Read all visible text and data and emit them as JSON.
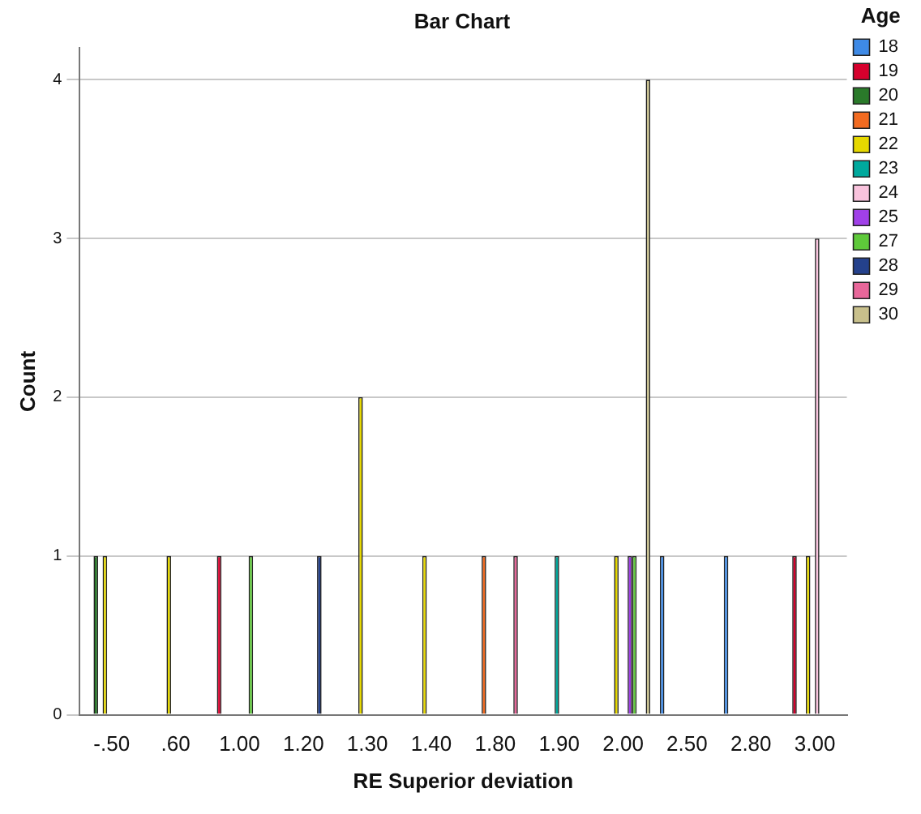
{
  "chart_data": {
    "type": "bar",
    "title": "Bar Chart",
    "xlabel": "RE Superior deviation",
    "ylabel": "Count",
    "legend_title": "Age",
    "categories": [
      "-.50",
      ".60",
      "1.00",
      "1.20",
      "1.30",
      "1.40",
      "1.80",
      "1.90",
      "2.00",
      "2.50",
      "2.80",
      "3.00"
    ],
    "series": [
      {
        "name": "18",
        "color": "#3e8ae6",
        "values": [
          0,
          0,
          0,
          0,
          0,
          0,
          0,
          0,
          0,
          1,
          1,
          0
        ]
      },
      {
        "name": "19",
        "color": "#d6002d",
        "values": [
          0,
          0,
          1,
          0,
          0,
          0,
          0,
          0,
          0,
          0,
          0,
          1
        ]
      },
      {
        "name": "20",
        "color": "#2a7a2a",
        "values": [
          1,
          0,
          0,
          0,
          0,
          0,
          0,
          0,
          0,
          0,
          0,
          0
        ]
      },
      {
        "name": "21",
        "color": "#f26b21",
        "values": [
          0,
          0,
          0,
          0,
          0,
          0,
          1,
          0,
          0,
          0,
          0,
          0
        ]
      },
      {
        "name": "22",
        "color": "#e6d800",
        "values": [
          1,
          1,
          0,
          0,
          2,
          1,
          0,
          0,
          1,
          0,
          0,
          1
        ]
      },
      {
        "name": "23",
        "color": "#00a99d",
        "values": [
          0,
          0,
          0,
          0,
          0,
          0,
          0,
          1,
          0,
          0,
          0,
          0
        ]
      },
      {
        "name": "24",
        "color": "#f9c3dd",
        "values": [
          0,
          0,
          0,
          0,
          0,
          0,
          0,
          0,
          0,
          0,
          0,
          3
        ]
      },
      {
        "name": "25",
        "color": "#a040e8",
        "values": [
          0,
          0,
          0,
          0,
          0,
          0,
          0,
          0,
          1,
          0,
          0,
          0
        ]
      },
      {
        "name": "27",
        "color": "#5ec93a",
        "values": [
          0,
          0,
          1,
          0,
          0,
          0,
          0,
          0,
          1,
          0,
          0,
          0
        ]
      },
      {
        "name": "28",
        "color": "#24418c",
        "values": [
          0,
          0,
          0,
          1,
          0,
          0,
          0,
          0,
          0,
          0,
          0,
          0
        ]
      },
      {
        "name": "29",
        "color": "#e8679a",
        "values": [
          0,
          0,
          0,
          0,
          0,
          0,
          1,
          0,
          0,
          0,
          0,
          0
        ]
      },
      {
        "name": "30",
        "color": "#c8c08c",
        "values": [
          0,
          0,
          0,
          0,
          0,
          0,
          0,
          0,
          4,
          0,
          0,
          0
        ]
      }
    ],
    "ylim": [
      0,
      4.2
    ],
    "yticks": [
      0,
      1,
      2,
      3,
      4
    ],
    "grid": "y",
    "legend": "right"
  }
}
